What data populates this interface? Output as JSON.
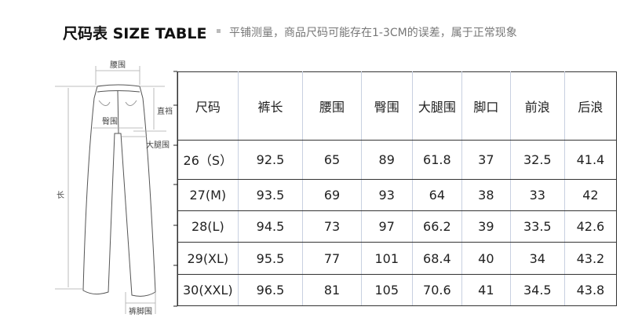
{
  "header": {
    "title": "尺码表 SIZE TABLE",
    "note": "平铺测量，商品尺码可能存在1-3CM的误差，属于正常现象"
  },
  "diagram": {
    "waist": "腰围",
    "hip": "臀围",
    "rise": "直裆",
    "thigh": "大腿围",
    "length": "长",
    "hem": "裤脚围"
  },
  "table": {
    "columns": [
      "尺码",
      "裤长",
      "腰围",
      "臀围",
      "大腿围",
      "脚口",
      "前浪",
      "后浪"
    ],
    "rows": [
      [
        "26（S）",
        "92.5",
        "65",
        "89",
        "61.8",
        "37",
        "32.5",
        "41.4"
      ],
      [
        "27(M)",
        "93.5",
        "69",
        "93",
        "64",
        "38",
        "33",
        "42"
      ],
      [
        "28(L)",
        "94.5",
        "73",
        "97",
        "66.2",
        "39",
        "33.5",
        "42.6"
      ],
      [
        "29(XL)",
        "95.5",
        "77",
        "101",
        "68.4",
        "40",
        "34",
        "43.2"
      ],
      [
        "30(XXL)",
        "96.5",
        "81",
        "105",
        "70.6",
        "41",
        "34.5",
        "43.8"
      ]
    ]
  }
}
